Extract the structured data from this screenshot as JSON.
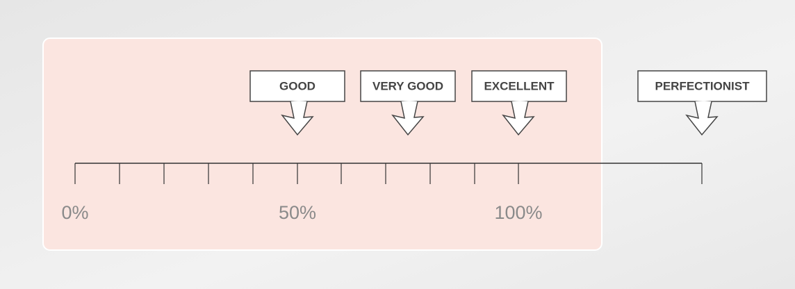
{
  "scale": {
    "labels": [
      "0%",
      "50%",
      "100%"
    ]
  },
  "markers": [
    {
      "label": "GOOD"
    },
    {
      "label": "VERY GOOD"
    },
    {
      "label": "EXCELLENT"
    },
    {
      "label": "PERFECTIONIST"
    }
  ]
}
